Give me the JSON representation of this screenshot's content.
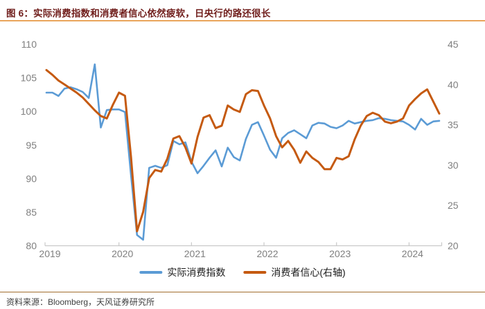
{
  "header": {
    "title": "图 6：实际消费指数和消费者信心依然疲软，日央行的路还很长"
  },
  "footer": {
    "source_text": "资料来源：Bloomberg，天风证券研究所"
  },
  "colors": {
    "title_color": "#6F1D1B",
    "top_rule": "#E9A45B",
    "bottom_rule": "#A06C2C",
    "axis_text": "#7F7F7F",
    "axis_line": "#C9C9C9",
    "source_text_color": "#3F3F3F",
    "series_blue": "#5B9BD5",
    "series_orange": "#C55A11"
  },
  "chart_data": {
    "type": "line",
    "title": "",
    "x_unit": "month",
    "x_start": "2019-01",
    "x_end": "2024-06",
    "x_tick_labels": [
      "2019",
      "2020",
      "2021",
      "2022",
      "2023",
      "2024"
    ],
    "left_axis": {
      "min": 80,
      "max": 110,
      "ticks": [
        110,
        105,
        100,
        95,
        90,
        85,
        80
      ]
    },
    "right_axis": {
      "min": 20,
      "max": 45,
      "ticks": [
        45,
        40,
        35,
        30,
        25,
        20
      ]
    },
    "grid": false,
    "legend_position": "bottom",
    "series": [
      {
        "name": "实际消费指数",
        "axis": "left",
        "color": "#5B9BD5",
        "values": [
          102.8,
          102.8,
          102.3,
          103.4,
          103.6,
          103.3,
          102.9,
          102.0,
          107.0,
          97.6,
          100.2,
          100.3,
          100.3,
          99.9,
          90.5,
          81.6,
          80.9,
          91.6,
          91.9,
          91.6,
          92.0,
          95.6,
          95.1,
          95.4,
          92.5,
          90.8,
          91.9,
          93.1,
          94.2,
          91.8,
          94.6,
          93.2,
          92.7,
          95.9,
          98.0,
          98.4,
          96.4,
          94.3,
          93.1,
          96.0,
          96.8,
          97.2,
          96.6,
          96.0,
          97.9,
          98.3,
          98.2,
          97.7,
          97.5,
          97.9,
          98.6,
          98.2,
          98.4,
          98.6,
          98.7,
          99.0,
          98.9,
          98.7,
          98.6,
          98.5,
          98.0,
          97.3,
          98.9,
          98.0,
          98.5,
          98.6
        ]
      },
      {
        "name": "消费者信心(右轴)",
        "axis": "right",
        "color": "#C55A11",
        "values": [
          41.8,
          41.2,
          40.5,
          40.0,
          39.5,
          39.0,
          38.4,
          37.6,
          36.8,
          36.1,
          35.8,
          37.5,
          39.0,
          38.6,
          31.0,
          21.8,
          24.2,
          28.4,
          29.4,
          29.2,
          30.8,
          33.3,
          33.6,
          32.2,
          30.2,
          33.5,
          35.9,
          36.2,
          34.6,
          34.9,
          37.4,
          36.9,
          36.6,
          38.8,
          39.3,
          39.2,
          37.4,
          35.8,
          33.6,
          32.2,
          33.0,
          31.9,
          30.3,
          31.7,
          30.9,
          30.4,
          29.5,
          29.5,
          30.9,
          30.7,
          31.1,
          33.2,
          34.9,
          36.1,
          36.5,
          36.2,
          35.4,
          35.2,
          35.4,
          35.8,
          37.4,
          38.2,
          38.9,
          39.4,
          37.9,
          36.4
        ]
      }
    ]
  }
}
